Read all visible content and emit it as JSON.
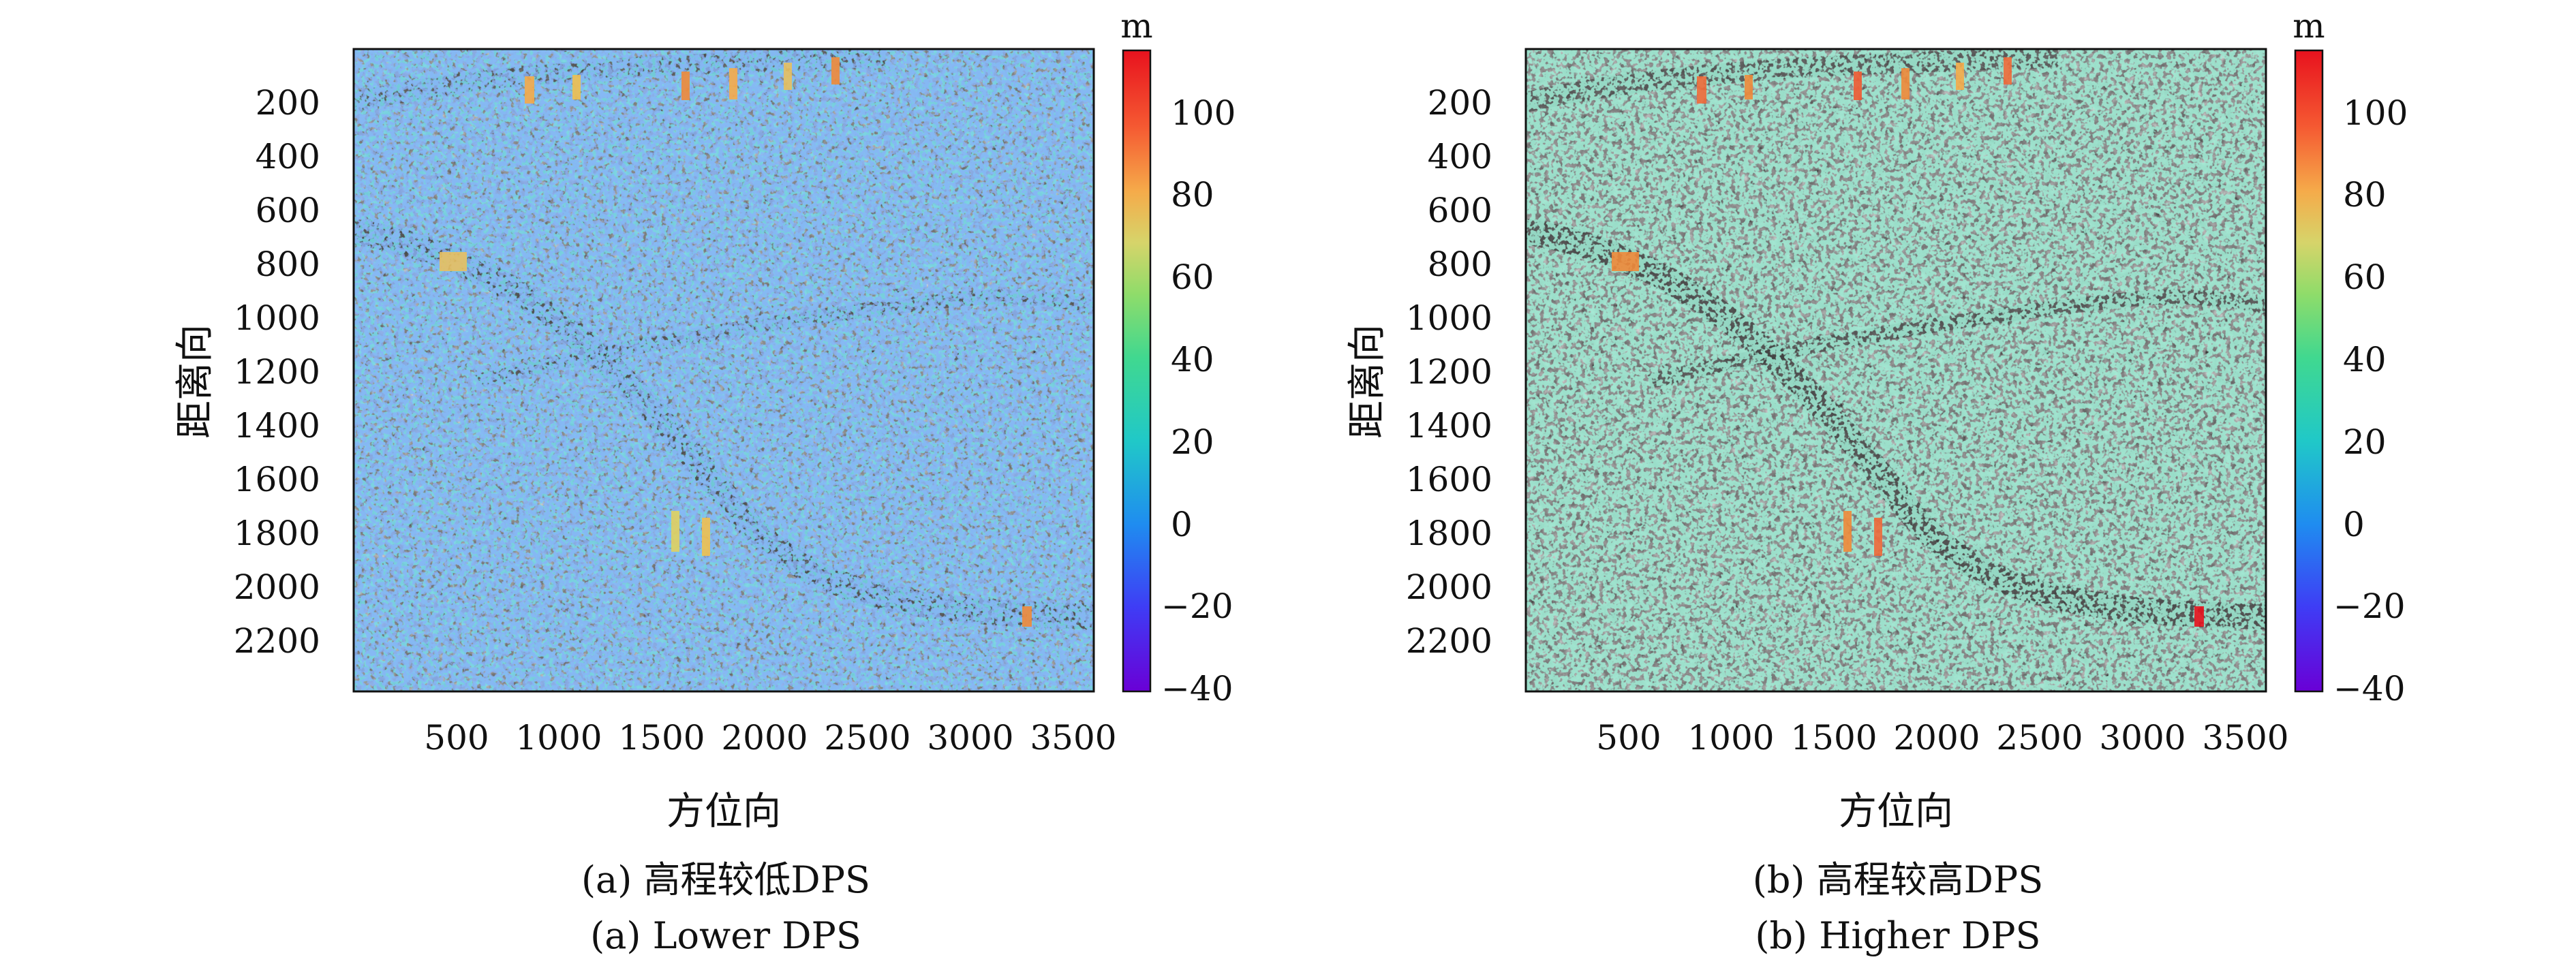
{
  "figures": [
    {
      "caption_zh": "(a) 高程较低DPS",
      "caption_en": "(a) Lower DPS",
      "chart_data": {
        "type": "heatmap",
        "xlabel": "方位向",
        "ylabel": "距离向",
        "xticks": [
          500,
          1000,
          1500,
          2000,
          2500,
          3000,
          3500
        ],
        "yticks": [
          200,
          400,
          600,
          800,
          1000,
          1200,
          1400,
          1600,
          1800,
          2000,
          2200
        ],
        "xlim": [
          1,
          3600
        ],
        "ylim": [
          2400,
          1
        ],
        "colorbar": {
          "unit": "m",
          "ticks": [
            100,
            80,
            60,
            40,
            20,
            0,
            -20,
            -40
          ],
          "range": [
            -40,
            114
          ],
          "colormap": "jet"
        },
        "dominant_height_range_m": [
          -20,
          30
        ]
      }
    },
    {
      "caption_zh": "(b) 高程较高DPS",
      "caption_en": "(b) Higher DPS",
      "chart_data": {
        "type": "heatmap",
        "xlabel": "方位向",
        "ylabel": "距离向",
        "xticks": [
          500,
          1000,
          1500,
          2000,
          2500,
          3000,
          3500
        ],
        "yticks": [
          200,
          400,
          600,
          800,
          1000,
          1200,
          1400,
          1600,
          1800,
          2000,
          2200
        ],
        "xlim": [
          1,
          3600
        ],
        "ylim": [
          2400,
          1
        ],
        "colorbar": {
          "unit": "m",
          "ticks": [
            100,
            80,
            60,
            40,
            20,
            0,
            -20,
            -40
          ],
          "range": [
            -40,
            114
          ],
          "colormap": "jet"
        },
        "dominant_height_range_m": [
          10,
          40
        ]
      }
    }
  ]
}
